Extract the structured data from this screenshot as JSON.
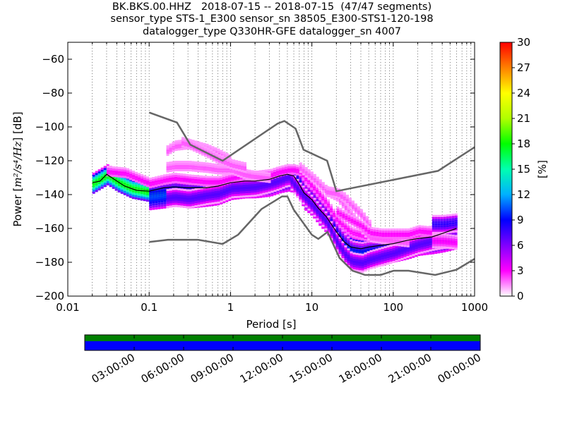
{
  "title": {
    "line1": "BK.BKS.00.HHZ   2018-07-15 -- 2018-07-15  (47/47 segments)",
    "line2": "sensor_type STS-1_E300 sensor_sn 38505_E300-STS1-120-198",
    "line3": "datalogger_type Q330HR-GFE datalogger_sn 4007"
  },
  "chart_data": {
    "type": "heatmap",
    "xlabel": "Period [s]",
    "ylabel": "Power [m²/s⁴/Hz] [dB]",
    "ylabel_parts": {
      "prefix": "Power [",
      "unit": "m²/s⁴/Hz",
      "suffix": "] [dB]"
    },
    "x_scale": "log",
    "xlim": [
      0.01,
      1000
    ],
    "ylim": [
      -200,
      -50
    ],
    "x_ticks": [
      0.01,
      0.1,
      1,
      10,
      100,
      1000
    ],
    "x_tick_labels": [
      "0.01",
      "0.1",
      "1",
      "10",
      "100",
      "1000"
    ],
    "y_ticks": [
      -60,
      -80,
      -100,
      -120,
      -140,
      -160,
      -180,
      -200
    ],
    "y_tick_labels": [
      "−60",
      "−80",
      "−100",
      "−120",
      "−140",
      "−160",
      "−180",
      "−200"
    ],
    "grid": "dotted-vertical",
    "colorbar": {
      "label": "[%]",
      "range": [
        0,
        30
      ],
      "ticks": [
        0,
        3,
        6,
        9,
        12,
        15,
        18,
        21,
        24,
        27,
        30
      ],
      "colors": [
        "#ffffff",
        "#ff00ff",
        "#8000ff",
        "#0000ff",
        "#00b0ff",
        "#00ffb0",
        "#00ff00",
        "#b0ff00",
        "#ffff00",
        "#ff8000",
        "#ff0000"
      ]
    },
    "noise_models": [
      {
        "name": "high-noise-model",
        "x": [
          0.1,
          0.22,
          0.32,
          0.8,
          3.8,
          4.6,
          6.3,
          7.9,
          15.4,
          20,
          354.8,
          1000
        ],
        "y": [
          -91.5,
          -97.4,
          -110.5,
          -120,
          -98,
          -96.5,
          -101,
          -113.5,
          -120,
          -138,
          -126,
          -112
        ]
      },
      {
        "name": "low-noise-model",
        "x": [
          0.1,
          0.17,
          0.4,
          0.8,
          1.24,
          2.4,
          4.3,
          5,
          6,
          10,
          12,
          15.6,
          21.9,
          31.6,
          45,
          70,
          101,
          154,
          328,
          600,
          1000
        ],
        "y": [
          -168,
          -166.7,
          -166.7,
          -169.2,
          -163.7,
          -148.6,
          -141.1,
          -141.1,
          -149,
          -163.8,
          -166.2,
          -162.1,
          -177.5,
          -185,
          -187.5,
          -187.5,
          -185,
          -185,
          -187.5,
          -184.4,
          -178
        ]
      }
    ],
    "mode_line": {
      "x": [
        0.02,
        0.025,
        0.03,
        0.04,
        0.05,
        0.07,
        0.1,
        0.15,
        0.2,
        0.3,
        0.5,
        0.7,
        1,
        1.5,
        2,
        3,
        4,
        5,
        6,
        7,
        8,
        10,
        12,
        15,
        20,
        25,
        30,
        40,
        50,
        70,
        100,
        150,
        200,
        300,
        400,
        600
      ],
      "y": [
        -133,
        -132,
        -128,
        -132,
        -135,
        -137.5,
        -138,
        -136,
        -135.5,
        -136,
        -136,
        -135,
        -133,
        -132,
        -132,
        -131,
        -129,
        -128,
        -129,
        -134,
        -139,
        -143,
        -148,
        -153,
        -162,
        -168,
        -171,
        -172,
        -171,
        -170,
        -169,
        -167,
        -166,
        -165,
        -163,
        -160
      ]
    },
    "psd_clusters": [
      {
        "x": [
          0.02,
          0.03,
          0.04,
          0.06,
          0.1,
          0.15,
          0.2,
          0.3,
          0.5,
          0.7,
          1,
          1.5,
          2,
          3,
          4,
          5,
          6,
          7,
          8,
          10,
          12,
          15,
          20,
          25,
          30,
          40,
          50,
          70,
          100,
          150,
          200,
          300,
          400,
          600
        ],
        "y": [
          -133,
          -128,
          -132,
          -136,
          -138,
          -137,
          -136,
          -136,
          -136,
          -135,
          -133,
          -132,
          -132,
          -131,
          -129,
          -128,
          -129,
          -134,
          -139,
          -143,
          -148,
          -153,
          -162,
          -168,
          -171,
          -172,
          -171,
          -170,
          -169,
          -167,
          -166,
          -165,
          -163,
          -160
        ],
        "width": 6,
        "pct": 18
      },
      {
        "x": [
          0.1,
          0.15,
          0.2,
          0.3,
          0.5,
          0.7,
          1,
          1.5,
          2,
          3,
          4,
          5,
          6,
          7,
          8,
          10,
          12,
          15,
          20,
          25,
          30,
          40,
          50,
          70,
          100,
          150,
          200,
          300,
          400,
          600
        ],
        "y": [
          -141,
          -140,
          -139,
          -140,
          -139,
          -138,
          -135,
          -134,
          -134,
          -133,
          -131,
          -130,
          -131,
          -136,
          -141,
          -145,
          -150,
          -155,
          -165,
          -171,
          -175,
          -176,
          -175,
          -174,
          -172,
          -170,
          -168,
          -167,
          -166,
          -164
        ],
        "width": 8,
        "pct": 10
      },
      {
        "x": [
          0.15,
          0.2,
          0.3,
          0.5,
          0.7,
          1,
          2,
          3,
          4,
          5,
          7,
          10,
          15,
          20,
          25,
          30,
          40,
          50,
          70,
          100,
          150,
          200,
          300,
          400,
          600
        ],
        "y": [
          -142,
          -141,
          -142,
          -140,
          -139,
          -136,
          -135,
          -133,
          -131,
          -129,
          -138,
          -146,
          -156,
          -168,
          -175,
          -179,
          -180,
          -178,
          -176,
          -174,
          -171,
          -169,
          -167,
          -166,
          -165
        ],
        "width": 5,
        "pct": 7
      },
      {
        "x": [
          0.03,
          0.05,
          0.07,
          0.1,
          0.15,
          0.2,
          0.3,
          0.5,
          0.7,
          1,
          1.5,
          2,
          3,
          4,
          5,
          6,
          7,
          8,
          10,
          15,
          20,
          30,
          50,
          70,
          100,
          200,
          300,
          600
        ],
        "y": [
          -126,
          -127,
          -130,
          -133,
          -131,
          -130,
          -131,
          -132,
          -132,
          -130,
          -128,
          -129,
          -128,
          -126,
          -125,
          -125,
          -126,
          -130,
          -135,
          -145,
          -155,
          -162,
          -165,
          -166,
          -166,
          -163,
          -161,
          -158
        ],
        "width": 3,
        "pct": 3
      },
      {
        "x": [
          0.15,
          0.2,
          0.3,
          0.5,
          0.7,
          1
        ],
        "y": [
          -115,
          -111,
          -110,
          -113,
          -116,
          -120
        ],
        "width": 3,
        "pct": 2
      },
      {
        "x": [
          0.15,
          0.2,
          0.3,
          0.5,
          0.7,
          1,
          1.5,
          2,
          3
        ],
        "y": [
          -124,
          -123,
          -123,
          -124,
          -125,
          -125,
          -128,
          -129,
          -130
        ],
        "width": 3,
        "pct": 2
      },
      {
        "x": [
          0.25,
          0.3,
          0.5,
          0.7,
          1,
          1.5
        ],
        "y": [
          -109,
          -110,
          -115,
          -119,
          -122,
          -124
        ],
        "width": 3,
        "pct": 2
      },
      {
        "x": [
          7,
          10,
          15,
          20,
          25,
          30,
          40,
          50,
          70,
          100,
          150
        ],
        "y": [
          -124,
          -130,
          -138,
          -141,
          -147,
          -152,
          -160,
          -165,
          -166,
          -167,
          -168
        ],
        "width": 3,
        "pct": 2
      },
      {
        "x": [
          15,
          20,
          25,
          30,
          40,
          50
        ],
        "y": [
          -138,
          -139,
          -142,
          -146,
          -152,
          -158
        ],
        "width": 3,
        "pct": 2
      },
      {
        "x": [
          20,
          30,
          40,
          50,
          70,
          100,
          150,
          200,
          300
        ],
        "y": [
          -150,
          -155,
          -158,
          -162,
          -163,
          -163,
          -163,
          -161,
          -162
        ],
        "width": 3,
        "pct": 3
      },
      {
        "x": [
          300,
          400,
          600
        ],
        "y": [
          -157,
          -157,
          -156
        ],
        "width": 5,
        "pct": 8
      },
      {
        "x": [
          300,
          400,
          600
        ],
        "y": [
          -167,
          -167,
          -168
        ],
        "width": 4,
        "pct": 3
      }
    ],
    "timeline": {
      "tick_labels": [
        "03:00:00",
        "06:00:00",
        "09:00:00",
        "12:00:00",
        "15:00:00",
        "18:00:00",
        "21:00:00",
        "00:00:00"
      ],
      "tick_fractions": [
        0.125,
        0.25,
        0.375,
        0.5,
        0.625,
        0.75,
        0.875,
        1.0
      ],
      "data_coverage": 1.0,
      "psd_coverage": 1.0,
      "data_color": "#008000",
      "psd_color": "#0000ff"
    }
  }
}
